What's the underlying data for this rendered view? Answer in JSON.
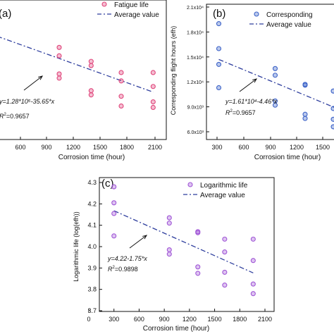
{
  "chart_data": [
    {
      "panel": "a",
      "panel_label": "(a)",
      "type": "scatter",
      "xlabel": "Corrosion time (hour)",
      "ylabel": "",
      "x_ticks": [
        "600",
        "900",
        "1200",
        "1500",
        "1800",
        "2100"
      ],
      "xlim": [
        300,
        2100
      ],
      "ylim": [
        0,
        1
      ],
      "legend": {
        "position": "top-right",
        "points_label": "Fatigue life",
        "line_label": "Average value"
      },
      "series": [
        {
          "name": "Fatigue life",
          "color": "#e0457b",
          "x": [
            960,
            960,
            960,
            960,
            1300,
            1300,
            1300,
            1300,
            1620,
            1620,
            1620,
            1620,
            1960,
            1960,
            1960,
            1960
          ],
          "y": [
            0.66,
            0.6,
            0.47,
            0.44,
            0.56,
            0.53,
            0.35,
            0.32,
            0.48,
            0.42,
            0.31,
            0.24,
            0.48,
            0.38,
            0.27,
            0.23
          ]
        }
      ],
      "fit": {
        "name": "Average value",
        "color": "#2f3f9e",
        "x": [
          300,
          1960
        ],
        "y": [
          0.74,
          0.34
        ]
      },
      "annotation": {
        "equation": "y=1.28*10⁵-35.65*x",
        "r2": "=0.9657"
      }
    },
    {
      "panel": "b",
      "panel_label": "(b)",
      "type": "scatter",
      "xlabel": "Corrosion time (hour)",
      "ylabel": "Corresponding flight hours (efh)",
      "y_ticks": [
        "6.0x10³",
        "9.0x10³",
        "1.2x10⁴",
        "1.5x10⁴",
        "1.8x10⁴",
        "2.1x10⁴"
      ],
      "y_tick_values": [
        6000,
        9000,
        12000,
        15000,
        18000,
        21000
      ],
      "x_ticks": [
        "300",
        "600",
        "900",
        "1200",
        "1500"
      ],
      "xlim": [
        150,
        1700
      ],
      "ylim": [
        4800,
        21000
      ],
      "legend": {
        "position": "top-right",
        "points_label": "Corresponding",
        "line_label": "Average value"
      },
      "series": [
        {
          "name": "Corresponding",
          "color": "#3d63c8",
          "x": [
            320,
            320,
            320,
            320,
            960,
            960,
            960,
            960,
            1300,
            1300,
            1300,
            1300,
            1620,
            1620,
            1620,
            1620
          ],
          "y": [
            19000,
            16000,
            14100,
            11300,
            13600,
            12800,
            9700,
            9200,
            11700,
            11600,
            8100,
            7600,
            10900,
            8800,
            7500,
            6600
          ]
        }
      ],
      "fit": {
        "name": "Average value",
        "color": "#2f3f9e",
        "x": [
          320,
          1650
        ],
        "y": [
          14700,
          8850
        ]
      },
      "annotation": {
        "equation": "y=1.61*10⁴-4.46*x",
        "r2": "=0.9657"
      }
    },
    {
      "panel": "c",
      "panel_label": "(c)",
      "type": "scatter",
      "xlabel": "Corrosion time (hour)",
      "ylabel": "Logarithmic life (log(efh))",
      "x_ticks": [
        "0",
        "300",
        "600",
        "900",
        "1200",
        "1500",
        "1800",
        "2100"
      ],
      "y_ticks": [
        "3.7",
        "3.8",
        "3.9",
        "4.0",
        "4.1",
        "4.2",
        "4.3"
      ],
      "xlim": [
        0,
        2100
      ],
      "ylim": [
        3.7,
        4.32
      ],
      "legend": {
        "position": "top-right",
        "points_label": "Logarithmic life",
        "line_label": "Average value"
      },
      "series": [
        {
          "name": "Logarithmic life",
          "color": "#a056d6",
          "x": [
            300,
            300,
            300,
            300,
            960,
            960,
            960,
            960,
            1300,
            1300,
            1300,
            1300,
            1620,
            1620,
            1620,
            1620,
            1960,
            1960,
            1960,
            1960
          ],
          "y": [
            4.28,
            4.205,
            4.155,
            4.05,
            4.135,
            4.11,
            3.985,
            3.965,
            4.07,
            4.065,
            3.905,
            3.875,
            4.035,
            3.975,
            3.88,
            3.82,
            4.035,
            3.935,
            3.825,
            3.78
          ]
        }
      ],
      "fit": {
        "name": "Average value",
        "color": "#2f3f9e",
        "x": [
          300,
          1960
        ],
        "y": [
          4.168,
          3.877
        ]
      },
      "annotation": {
        "equation": "y=4.22-1.75*x",
        "r2": "=0.9898"
      }
    }
  ]
}
